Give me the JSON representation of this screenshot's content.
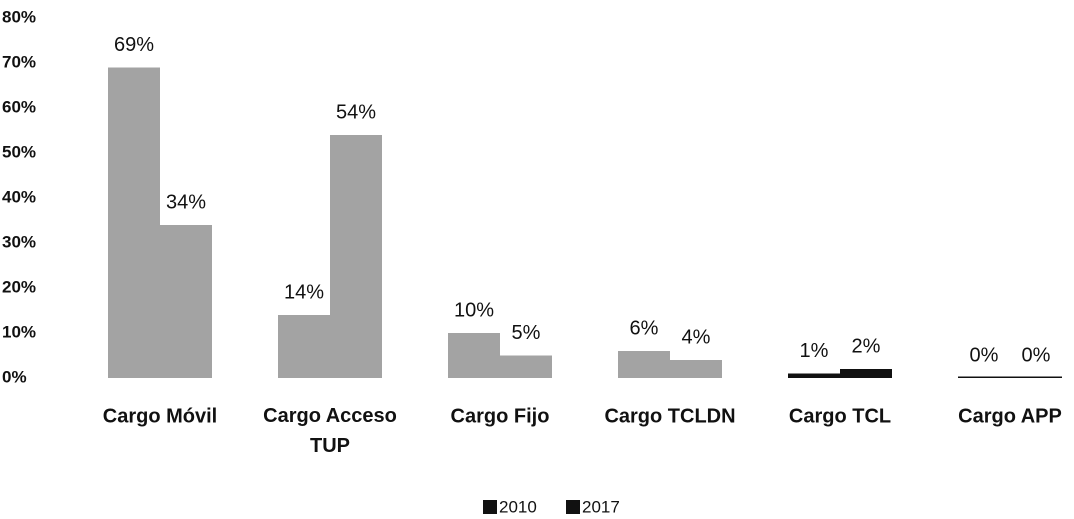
{
  "chart_data": {
    "type": "bar",
    "categories": [
      "Cargo Móvil",
      "Cargo Acceso TUP",
      "Cargo Fijo",
      "Cargo TCLDN",
      "Cargo TCL",
      "Cargo APP"
    ],
    "series": [
      {
        "name": "2010",
        "color": "#111111",
        "colors": [
          "#a3a3a3",
          "#a3a3a3",
          "#a3a3a3",
          "#a3a3a3",
          "#111111",
          "#111111"
        ],
        "values": [
          69,
          14,
          10,
          6,
          1,
          0
        ],
        "value_labels": [
          "69%",
          "14%",
          "10%",
          "6%",
          "1%",
          "0%"
        ]
      },
      {
        "name": "2017",
        "color": "#111111",
        "colors": [
          "#a3a3a3",
          "#a3a3a3",
          "#a3a3a3",
          "#a3a3a3",
          "#111111",
          "#111111"
        ],
        "values": [
          34,
          54,
          5,
          4,
          2,
          0
        ],
        "value_labels": [
          "34%",
          "54%",
          "5%",
          "4%",
          "2%",
          "0%"
        ]
      }
    ],
    "ylim": [
      0,
      80
    ],
    "yticks": [
      {
        "value": 0,
        "label": "0%"
      },
      {
        "value": 10,
        "label": "10%"
      },
      {
        "value": 20,
        "label": "20%"
      },
      {
        "value": 30,
        "label": "30%"
      },
      {
        "value": 40,
        "label": "40%"
      },
      {
        "value": 50,
        "label": "50%"
      },
      {
        "value": 60,
        "label": "60%"
      },
      {
        "value": 70,
        "label": "70%"
      },
      {
        "value": 80,
        "label": "80%"
      }
    ],
    "grid": false,
    "legend": "bottom"
  }
}
